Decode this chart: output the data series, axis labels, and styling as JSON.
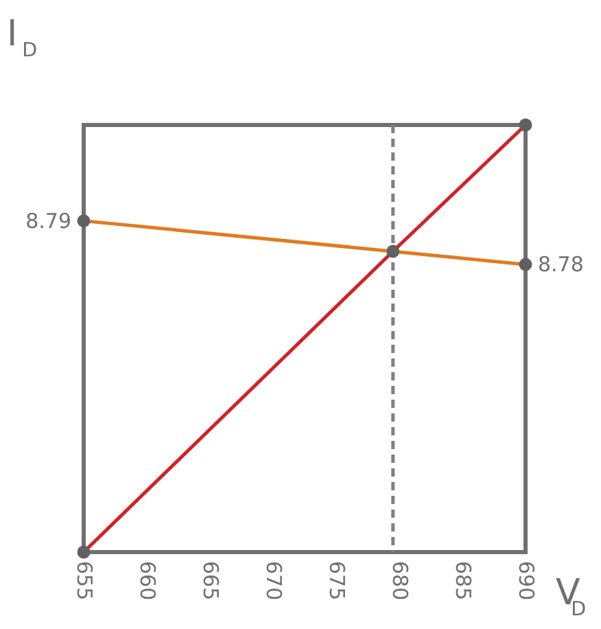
{
  "chart_data": {
    "type": "line",
    "xlabel": "V$_{D}$",
    "ylabel": "I$_{D}$",
    "xlim": [
      655,
      690
    ],
    "xticks": [
      655,
      660,
      665,
      670,
      675,
      680,
      685,
      690
    ],
    "ylim": [
      8.714,
      8.812
    ],
    "series": [
      {
        "color": "#e07b20",
        "x": [
          655,
          690
        ],
        "values": [
          8.79,
          8.78
        ],
        "value_labels": [
          "8.79",
          "8.78"
        ]
      },
      {
        "color": "#d42027",
        "x": [
          655,
          679.5,
          690
        ],
        "values": [
          8.714,
          8.783,
          8.812
        ]
      }
    ],
    "ref_lines": [
      {
        "axis": "x",
        "value": 679.5,
        "color": "#808080",
        "line_style": "dashed"
      }
    ],
    "marker": "circle",
    "grid": false
  }
}
